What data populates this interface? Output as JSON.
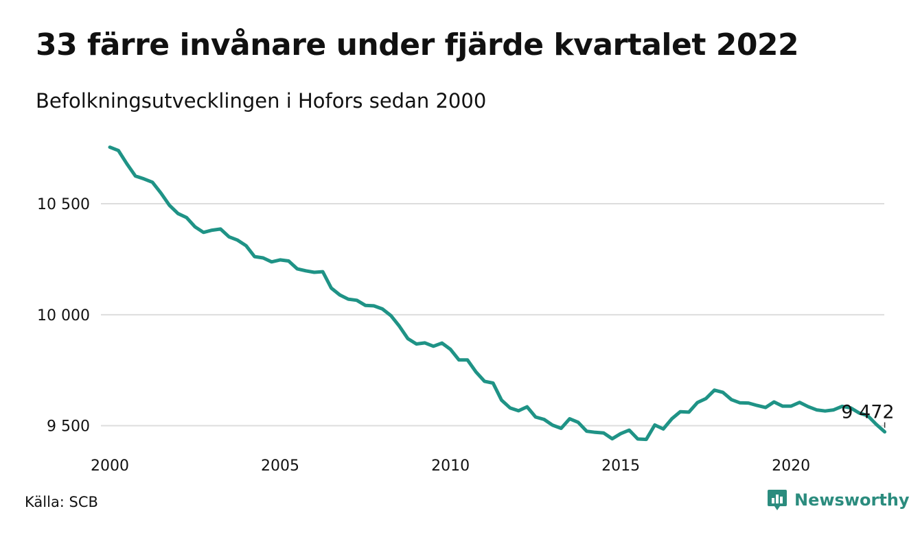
{
  "title": "33 färre invånare under fjärde kvartalet 2022",
  "subtitle": "Befolkningsutvecklingen i Hofors sedan 2000",
  "source": "Källa: SCB",
  "brand": "Newsworthy",
  "colors": {
    "line": "#1f9386",
    "grid": "#dddddd",
    "brand": "#2b8c7e",
    "text": "#111111"
  },
  "chart_data": {
    "type": "line",
    "x_tick_labels": [
      "2000",
      "2005",
      "2010",
      "2015",
      "2020"
    ],
    "y_tick_labels": [
      "10 500",
      "10 000",
      "9 500"
    ],
    "y_ticks": [
      10500,
      10000,
      9500
    ],
    "x_ticks": [
      2000,
      2005,
      2010,
      2015,
      2020
    ],
    "xlim": [
      2000,
      2023
    ],
    "ylim": [
      9440,
      10800
    ],
    "grid": true,
    "end_label": "9 472",
    "series": [
      {
        "x": [
          2000.0,
          2000.25,
          2000.5,
          2000.75,
          2001.0,
          2001.25,
          2001.5,
          2001.75,
          2002.0,
          2002.25,
          2002.5,
          2002.75,
          2003.0,
          2003.25,
          2003.5,
          2003.75,
          2004.0,
          2004.25,
          2004.5,
          2004.75,
          2005.0,
          2005.25,
          2005.5,
          2005.75,
          2006.0,
          2006.25,
          2006.5,
          2006.75,
          2007.0,
          2007.25,
          2007.5,
          2007.75,
          2008.0,
          2008.25,
          2008.5,
          2008.75,
          2009.0,
          2009.25,
          2009.5,
          2009.75,
          2010.0,
          2010.25,
          2010.5,
          2010.75,
          2011.0,
          2011.25,
          2011.5,
          2011.75,
          2012.0,
          2012.25,
          2012.5,
          2012.75,
          2013.0,
          2013.25,
          2013.5,
          2013.75,
          2014.0,
          2014.25,
          2014.5,
          2014.75,
          2015.0,
          2015.25,
          2015.5,
          2015.75,
          2016.0,
          2016.25,
          2016.5,
          2016.75,
          2017.0,
          2017.25,
          2017.5,
          2017.75,
          2018.0,
          2018.25,
          2018.5,
          2018.75,
          2019.0,
          2019.25,
          2019.5,
          2019.75,
          2020.0,
          2020.25,
          2020.5,
          2020.75,
          2021.0,
          2021.25,
          2021.5,
          2021.75,
          2022.0,
          2022.25,
          2022.5,
          2022.75
        ],
        "y": [
          10755,
          10740,
          10680,
          10625,
          10612,
          10597,
          10548,
          10493,
          10456,
          10438,
          10396,
          10371,
          10381,
          10386,
          10351,
          10336,
          10311,
          10262,
          10256,
          10238,
          10247,
          10242,
          10207,
          10198,
          10191,
          10194,
          10120,
          10089,
          10070,
          10065,
          10042,
          10040,
          10026,
          9996,
          9948,
          9892,
          9868,
          9873,
          9858,
          9872,
          9844,
          9796,
          9796,
          9742,
          9700,
          9692,
          9615,
          9580,
          9567,
          9585,
          9539,
          9528,
          9502,
          9488,
          9531,
          9515,
          9475,
          9470,
          9467,
          9441,
          9464,
          9480,
          9440,
          9438,
          9503,
          9485,
          9531,
          9563,
          9561,
          9604,
          9622,
          9660,
          9650,
          9617,
          9603,
          9602,
          9591,
          9582,
          9607,
          9588,
          9588,
          9605,
          9586,
          9571,
          9566,
          9571,
          9587,
          9580,
          9557,
          9545,
          9506,
          9472
        ]
      }
    ]
  }
}
